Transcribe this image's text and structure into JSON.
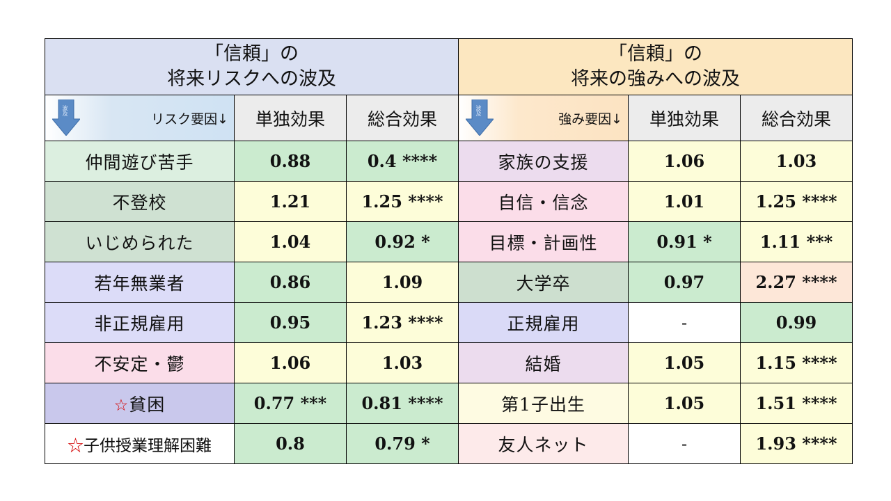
{
  "titles": {
    "left_line1": "「信頼」の",
    "left_line2": "将来リスクへの波及",
    "right_line1": "「信頼」の",
    "right_line2": "将来の強みへの波及"
  },
  "arrow_text": "波及",
  "headers": {
    "risk_factor": "リスク要因↓",
    "strength_factor": "強み要因↓",
    "single_effect": "単独効果",
    "total_effect": "総合効果"
  },
  "risk_rows": [
    {
      "name": "仲間遊び苦手",
      "single": "0.88",
      "total": "0.4 ****",
      "star": ""
    },
    {
      "name": "不登校",
      "single": "1.21",
      "total": "1.25 ****",
      "star": ""
    },
    {
      "name": "いじめられた",
      "single": "1.04",
      "total": "0.92 *",
      "star": ""
    },
    {
      "name": "若年無業者",
      "single": "0.86",
      "total": "1.09",
      "star": ""
    },
    {
      "name": "非正規雇用",
      "single": "0.95",
      "total": "1.23 ****",
      "star": ""
    },
    {
      "name": "不安定・鬱",
      "single": "1.06",
      "total": "1.03",
      "star": ""
    },
    {
      "name": "貧困",
      "single": "0.77 ***",
      "total": "0.81 ****",
      "star": "☆"
    },
    {
      "name": "子供授業理解困難",
      "single": "0.8",
      "total": "0.79 *",
      "star": "☆"
    }
  ],
  "strength_rows": [
    {
      "name": "家族の支援",
      "single": "1.06",
      "total": "1.03"
    },
    {
      "name": "自信・信念",
      "single": "1.01",
      "total": "1.25 ****"
    },
    {
      "name": "目標・計画性",
      "single": "0.91 *",
      "total": "1.11 ***"
    },
    {
      "name": "大学卒",
      "single": "0.97",
      "total": "2.27 ****"
    },
    {
      "name": "正規雇用",
      "single": "-",
      "total": "0.99"
    },
    {
      "name": "結婚",
      "single": "1.05",
      "total": "1.15 ****"
    },
    {
      "name": "第1子出生",
      "single": "1.05",
      "total": "1.51 ****"
    },
    {
      "name": "友人ネット",
      "single": "-",
      "total": "1.93 ****"
    }
  ]
}
